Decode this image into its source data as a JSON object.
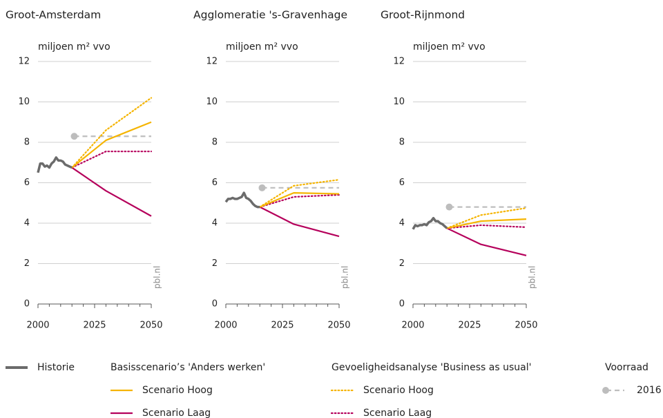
{
  "chart_data": [
    {
      "type": "line",
      "title": "Groot-Amsterdam",
      "y_label": "miljoen m² vvo",
      "source": "pbl.nl",
      "xlim": [
        2000,
        2050
      ],
      "xticks": [
        2000,
        2025,
        2050
      ],
      "xticks_minor": [
        2005,
        2010,
        2015,
        2020,
        2030,
        2035,
        2040,
        2045
      ],
      "ylim": [
        0,
        12
      ],
      "yticks": [
        0,
        2,
        4,
        6,
        8,
        10,
        12
      ],
      "grid": true,
      "series": [
        {
          "x": [
            2000,
            2001,
            2002,
            2003,
            2004,
            2005,
            2006,
            2007,
            2008,
            2009,
            2010,
            2011,
            2012,
            2013,
            2014,
            2015
          ],
          "values": [
            6.5,
            6.95,
            6.95,
            6.8,
            6.85,
            6.75,
            6.95,
            7.05,
            7.25,
            7.1,
            7.1,
            7.05,
            6.9,
            6.85,
            6.8,
            6.75
          ]
        },
        {
          "x": [
            2015,
            2030,
            2050
          ],
          "values": [
            6.75,
            8.1,
            9.0
          ]
        },
        {
          "x": [
            2015,
            2030,
            2050
          ],
          "values": [
            6.75,
            5.6,
            4.35
          ]
        },
        {
          "x": [
            2015,
            2030,
            2050
          ],
          "values": [
            6.75,
            8.6,
            10.2
          ]
        },
        {
          "x": [
            2015,
            2030,
            2050
          ],
          "values": [
            6.75,
            7.55,
            7.55
          ]
        },
        {
          "x": [
            2016,
            2050
          ],
          "values": [
            8.3,
            8.3
          ]
        }
      ]
    },
    {
      "type": "line",
      "title": "Agglomeratie 's-Gravenhage",
      "y_label": "miljoen m² vvo",
      "source": "pbl.nl",
      "xlim": [
        2000,
        2050
      ],
      "xticks": [
        2000,
        2025,
        2050
      ],
      "xticks_minor": [
        2005,
        2010,
        2015,
        2020,
        2030,
        2035,
        2040,
        2045
      ],
      "ylim": [
        0,
        12
      ],
      "yticks": [
        0,
        2,
        4,
        6,
        8,
        10,
        12
      ],
      "grid": true,
      "series": [
        {
          "x": [
            2000,
            2001,
            2002,
            2003,
            2004,
            2005,
            2006,
            2007,
            2008,
            2009,
            2010,
            2011,
            2012,
            2013,
            2014,
            2015
          ],
          "values": [
            5.05,
            5.2,
            5.2,
            5.25,
            5.2,
            5.2,
            5.25,
            5.3,
            5.5,
            5.25,
            5.2,
            5.1,
            4.95,
            4.85,
            4.8,
            4.8
          ]
        },
        {
          "x": [
            2015,
            2030,
            2050
          ],
          "values": [
            4.8,
            5.5,
            5.45
          ]
        },
        {
          "x": [
            2015,
            2030,
            2050
          ],
          "values": [
            4.8,
            3.95,
            3.35
          ]
        },
        {
          "x": [
            2015,
            2030,
            2050
          ],
          "values": [
            4.8,
            5.85,
            6.15
          ]
        },
        {
          "x": [
            2015,
            2030,
            2050
          ],
          "values": [
            4.8,
            5.3,
            5.4
          ]
        },
        {
          "x": [
            2016,
            2050
          ],
          "values": [
            5.75,
            5.75
          ]
        }
      ]
    },
    {
      "type": "line",
      "title": "Groot-Rijnmond",
      "y_label": "miljoen m² vvo",
      "source": "pbl.nl",
      "xlim": [
        2000,
        2050
      ],
      "xticks": [
        2000,
        2025,
        2050
      ],
      "xticks_minor": [
        2005,
        2010,
        2015,
        2020,
        2030,
        2035,
        2040,
        2045
      ],
      "ylim": [
        0,
        12
      ],
      "yticks": [
        0,
        2,
        4,
        6,
        8,
        10,
        12
      ],
      "grid": true,
      "series": [
        {
          "x": [
            2000,
            2001,
            2002,
            2003,
            2004,
            2005,
            2006,
            2007,
            2008,
            2009,
            2010,
            2011,
            2012,
            2013,
            2014,
            2015
          ],
          "values": [
            3.7,
            3.9,
            3.85,
            3.9,
            3.9,
            3.95,
            3.9,
            4.05,
            4.1,
            4.25,
            4.1,
            4.1,
            4.0,
            3.95,
            3.85,
            3.75
          ]
        },
        {
          "x": [
            2015,
            2030,
            2050
          ],
          "values": [
            3.75,
            4.1,
            4.2
          ]
        },
        {
          "x": [
            2015,
            2030,
            2050
          ],
          "values": [
            3.75,
            2.95,
            2.4
          ]
        },
        {
          "x": [
            2015,
            2030,
            2050
          ],
          "values": [
            3.75,
            4.4,
            4.75
          ]
        },
        {
          "x": [
            2015,
            2030,
            2050
          ],
          "values": [
            3.75,
            3.9,
            3.8
          ]
        },
        {
          "x": [
            2016,
            2050
          ],
          "values": [
            4.8,
            4.8
          ]
        }
      ]
    }
  ],
  "legend": [
    {
      "items": [
        {
          "name": "Historie",
          "color": "#6b6b6b",
          "dash": "solid"
        }
      ]
    },
    {
      "title": "Basisscenario’s 'Anders werken'",
      "items": [
        {
          "name": "Scenario Hoog",
          "color": "#f5b400",
          "dash": "solid"
        },
        {
          "name": "Scenario Laag",
          "color": "#b5005b",
          "dash": "solid"
        }
      ]
    },
    {
      "title": "Gevoeligheidsanalyse 'Business as usual'",
      "items": [
        {
          "name": "Scenario Hoog",
          "color": "#f5b400",
          "dash": "dotted"
        },
        {
          "name": "Scenario Laag",
          "color": "#b5005b",
          "dash": "dotted"
        }
      ]
    },
    {
      "title": "Voorraad",
      "items": [
        {
          "name": "2016",
          "color": "#bdbdbd",
          "dash": "dashed",
          "marker": "circle"
        }
      ]
    }
  ]
}
